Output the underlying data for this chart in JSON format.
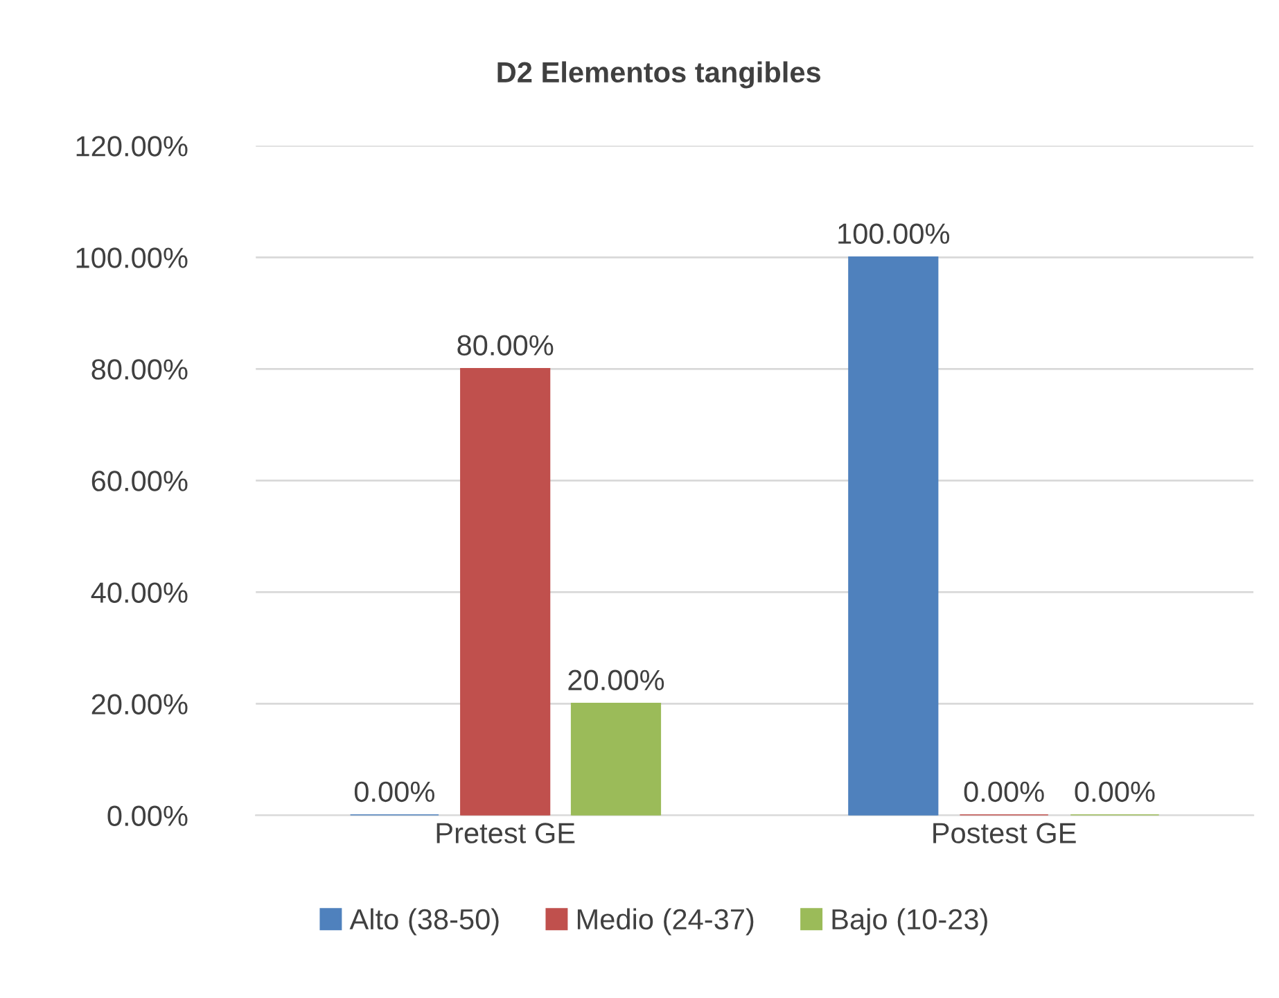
{
  "chart_data": {
    "type": "bar",
    "title": "D2 Elementos tangibles",
    "categories": [
      "Pretest GE",
      "Postest GE"
    ],
    "series": [
      {
        "name": "Alto (38-50)",
        "color": "#4f81bd",
        "values": [
          0,
          100
        ],
        "value_labels": [
          "0.00%",
          "100.00%"
        ]
      },
      {
        "name": "Medio (24-37)",
        "color": "#c0504d",
        "values": [
          80,
          0
        ],
        "value_labels": [
          "80.00%",
          "0.00%"
        ]
      },
      {
        "name": "Bajo (10-23)",
        "color": "#9bbb59",
        "values": [
          20,
          0
        ],
        "value_labels": [
          "20.00%",
          "0.00%"
        ]
      }
    ],
    "ylim": [
      0,
      120
    ],
    "yticks": [
      {
        "value": 0,
        "label": "0.00%"
      },
      {
        "value": 20,
        "label": "20.00%"
      },
      {
        "value": 40,
        "label": "40.00%"
      },
      {
        "value": 60,
        "label": "60.00%"
      },
      {
        "value": 80,
        "label": "80.00%"
      },
      {
        "value": 100,
        "label": "100.00%"
      },
      {
        "value": 120,
        "label": "120.00%"
      }
    ],
    "grid": "y",
    "legend": "bottom"
  }
}
